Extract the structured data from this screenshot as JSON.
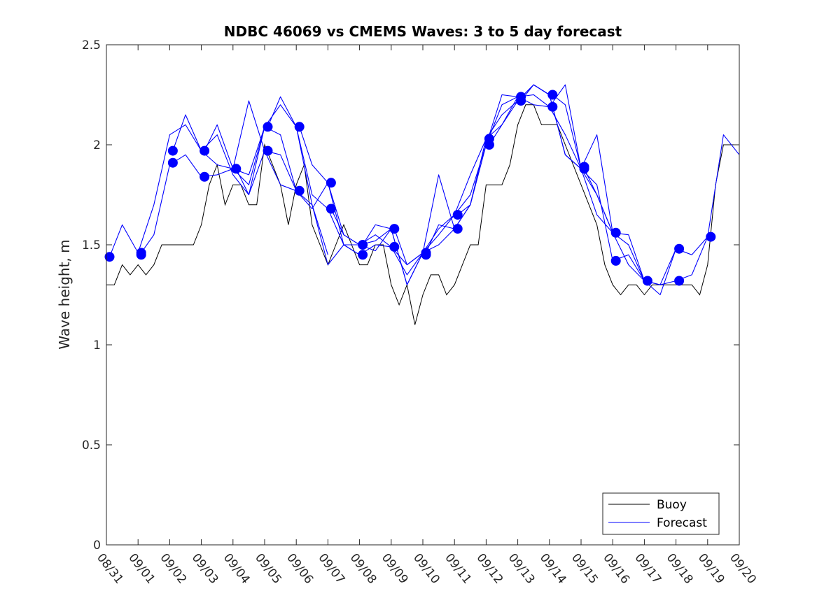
{
  "chart_data": {
    "type": "line",
    "title": "NDBC 46069 vs CMEMS Waves: 3 to 5 day forecast",
    "xlabel": "",
    "ylabel": "Wave height, m",
    "xlim": [
      0,
      20
    ],
    "ylim": [
      0,
      2.5
    ],
    "yticks": [
      0,
      0.5,
      1,
      1.5,
      2,
      2.5
    ],
    "ytick_labels": [
      "0",
      "0.5",
      "1",
      "1.5",
      "2",
      "2.5"
    ],
    "xtick_labels": [
      "08/31",
      "09/01",
      "09/02",
      "09/03",
      "09/04",
      "09/05",
      "09/06",
      "09/07",
      "09/08",
      "09/09",
      "09/10",
      "09/11",
      "09/12",
      "09/13",
      "09/14",
      "09/15",
      "09/16",
      "09/17",
      "09/18",
      "09/19",
      "09/20"
    ],
    "legend": {
      "position": "bottom-right",
      "entries": [
        {
          "label": "Buoy",
          "color": "#000000"
        },
        {
          "label": "Forecast",
          "color": "#0000ff"
        }
      ]
    },
    "colors": {
      "buoy": "#000000",
      "forecast": "#0000ff"
    },
    "buoy": {
      "name": "Buoy",
      "x": [
        0,
        0.25,
        0.5,
        0.75,
        1,
        1.25,
        1.5,
        1.75,
        2,
        2.25,
        2.5,
        2.75,
        3,
        3.25,
        3.5,
        3.75,
        4,
        4.25,
        4.5,
        4.75,
        5,
        5.25,
        5.5,
        5.75,
        6,
        6.25,
        6.5,
        6.75,
        7,
        7.25,
        7.5,
        7.75,
        8,
        8.25,
        8.5,
        8.75,
        9,
        9.25,
        9.5,
        9.75,
        10,
        10.25,
        10.5,
        10.75,
        11,
        11.25,
        11.5,
        11.75,
        12,
        12.25,
        12.5,
        12.75,
        13,
        13.25,
        13.5,
        13.75,
        14,
        14.25,
        14.5,
        14.75,
        15,
        15.25,
        15.5,
        15.75,
        16,
        16.25,
        16.5,
        16.75,
        17,
        17.25,
        17.5,
        17.75,
        18,
        18.25,
        18.5,
        18.75,
        19,
        19.25,
        19.5,
        19.75,
        20
      ],
      "y": [
        1.3,
        1.3,
        1.4,
        1.35,
        1.4,
        1.35,
        1.4,
        1.5,
        1.5,
        1.5,
        1.5,
        1.5,
        1.6,
        1.8,
        1.9,
        1.7,
        1.8,
        1.8,
        1.7,
        1.7,
        2.0,
        1.9,
        1.8,
        1.6,
        1.8,
        1.9,
        1.6,
        1.5,
        1.4,
        1.5,
        1.6,
        1.5,
        1.4,
        1.4,
        1.5,
        1.5,
        1.3,
        1.2,
        1.3,
        1.1,
        1.25,
        1.35,
        1.35,
        1.25,
        1.3,
        1.4,
        1.5,
        1.5,
        1.8,
        1.8,
        1.8,
        1.9,
        2.1,
        2.2,
        2.2,
        2.1,
        2.1,
        2.1,
        2.0,
        1.9,
        1.8,
        1.7,
        1.6,
        1.4,
        1.3,
        1.25,
        1.3,
        1.3,
        1.25,
        1.3,
        1.3,
        1.3,
        1.3,
        1.3,
        1.3,
        1.25,
        1.4,
        1.8,
        2.0,
        2.0,
        2.0
      ]
    },
    "forecast_series": [
      {
        "name": "Forecast",
        "x": [
          0.1,
          0.5,
          1.0,
          1.5,
          2.0,
          2.5,
          3.0,
          3.5,
          4.0,
          4.5,
          5.0
        ],
        "y": [
          1.44,
          1.6,
          1.46,
          1.7,
          2.05,
          2.1,
          1.97,
          1.9,
          1.88,
          1.85,
          2.09
        ]
      },
      {
        "name": "Forecast",
        "x": [
          1.1,
          1.5,
          2.0,
          2.5,
          3.0,
          3.5,
          4.0,
          4.5,
          5.0,
          5.5,
          6.0
        ],
        "y": [
          1.46,
          1.55,
          1.9,
          1.95,
          1.84,
          1.85,
          1.88,
          2.22,
          1.97,
          1.8,
          1.77
        ]
      },
      {
        "name": "Forecast",
        "x": [
          2.1,
          2.5,
          3.0,
          3.5,
          4.0,
          4.5,
          5.0,
          5.5,
          6.0,
          6.5,
          7.0
        ],
        "y": [
          1.97,
          2.15,
          1.97,
          2.05,
          1.85,
          1.75,
          2.09,
          2.2,
          2.09,
          1.7,
          1.45
        ]
      },
      {
        "name": "Forecast",
        "x": [
          3.1,
          3.5,
          4.0,
          4.5,
          5.0,
          5.5,
          6.0,
          6.5,
          7.0,
          7.5,
          8.0
        ],
        "y": [
          1.97,
          2.1,
          1.88,
          1.8,
          2.09,
          2.05,
          1.77,
          1.7,
          1.4,
          1.5,
          1.45
        ]
      },
      {
        "name": "Forecast",
        "x": [
          4.1,
          4.5,
          5.0,
          5.5,
          6.0,
          6.5,
          7.0,
          7.5,
          8.0,
          8.5,
          9.0
        ],
        "y": [
          1.88,
          1.75,
          1.97,
          1.95,
          1.77,
          1.68,
          1.81,
          1.5,
          1.5,
          1.52,
          1.58
        ]
      },
      {
        "name": "Forecast",
        "x": [
          5.1,
          5.5,
          6.0,
          6.5,
          7.0,
          7.5,
          8.0,
          8.5,
          9.0,
          9.5,
          10.0
        ],
        "y": [
          2.09,
          2.24,
          2.09,
          1.75,
          1.68,
          1.5,
          1.45,
          1.5,
          1.49,
          1.35,
          1.46
        ]
      },
      {
        "name": "Forecast",
        "x": [
          6.1,
          6.5,
          7.0,
          7.5,
          8.0,
          8.5,
          9.0,
          9.5,
          10.0,
          10.5,
          11.0
        ],
        "y": [
          2.09,
          1.9,
          1.81,
          1.55,
          1.5,
          1.47,
          1.58,
          1.3,
          1.46,
          1.85,
          1.58
        ]
      },
      {
        "name": "Forecast",
        "x": [
          7.1,
          7.5,
          8.0,
          8.5,
          9.0,
          9.5,
          10.0,
          10.5,
          11.0,
          11.5,
          12.0
        ],
        "y": [
          1.68,
          1.55,
          1.5,
          1.55,
          1.49,
          1.4,
          1.46,
          1.58,
          1.65,
          1.85,
          2.03
        ]
      },
      {
        "name": "Forecast",
        "x": [
          8.1,
          8.5,
          9.0,
          9.5,
          10.0,
          10.5,
          11.0,
          11.5,
          12.0,
          12.5,
          13.0
        ],
        "y": [
          1.5,
          1.6,
          1.58,
          1.3,
          1.46,
          1.55,
          1.65,
          1.75,
          2.0,
          2.2,
          2.24
        ]
      },
      {
        "name": "Forecast",
        "x": [
          9.1,
          9.5,
          10.0,
          10.5,
          11.0,
          11.5,
          12.0,
          12.5,
          13.0,
          13.5,
          14.0
        ],
        "y": [
          1.58,
          1.4,
          1.46,
          1.5,
          1.58,
          1.7,
          2.03,
          2.1,
          2.22,
          2.3,
          2.25
        ]
      },
      {
        "name": "Forecast",
        "x": [
          10.1,
          10.5,
          11.0,
          11.5,
          12.0,
          12.5,
          13.0,
          13.5,
          14.0,
          14.5,
          15.0
        ],
        "y": [
          1.46,
          1.6,
          1.58,
          1.7,
          2.0,
          2.25,
          2.24,
          2.2,
          2.19,
          2.05,
          1.88
        ]
      },
      {
        "name": "Forecast",
        "x": [
          11.1,
          11.5,
          12.0,
          12.5,
          13.0,
          13.5,
          14.0,
          14.5,
          15.0,
          15.5,
          16.0
        ],
        "y": [
          1.65,
          1.7,
          2.03,
          2.15,
          2.22,
          2.3,
          2.25,
          1.95,
          1.88,
          1.75,
          1.56
        ]
      },
      {
        "name": "Forecast",
        "x": [
          12.1,
          12.5,
          13.0,
          13.5,
          14.0,
          14.5,
          15.0,
          15.5,
          16.0,
          16.5,
          17.0
        ],
        "y": [
          2.0,
          2.1,
          2.24,
          2.25,
          2.19,
          2.3,
          1.88,
          2.05,
          1.56,
          1.5,
          1.32
        ]
      },
      {
        "name": "Forecast",
        "x": [
          13.1,
          13.5,
          14.0,
          14.5,
          15.0,
          15.5,
          16.0,
          16.5,
          17.0,
          17.5,
          18.0
        ],
        "y": [
          2.22,
          2.3,
          2.25,
          1.95,
          1.88,
          1.65,
          1.56,
          1.4,
          1.32,
          1.25,
          1.48
        ]
      },
      {
        "name": "Forecast",
        "x": [
          14.1,
          14.5,
          15.0,
          15.5,
          16.0,
          16.5,
          17.0,
          17.5,
          18.0,
          18.5,
          19.0
        ],
        "y": [
          2.25,
          2.2,
          1.88,
          1.8,
          1.42,
          1.45,
          1.32,
          1.3,
          1.32,
          1.35,
          1.54
        ]
      },
      {
        "name": "Forecast",
        "x": [
          15.1,
          15.5,
          16.0,
          16.5,
          17.0,
          17.5,
          18.0,
          18.5,
          19.0,
          19.5,
          20.0
        ],
        "y": [
          1.88,
          1.75,
          1.56,
          1.55,
          1.32,
          1.3,
          1.48,
          1.45,
          1.54,
          2.05,
          1.95
        ]
      }
    ],
    "forecast_markers": [
      {
        "x": 0.1,
        "y": 1.44
      },
      {
        "x": 1.1,
        "y": 1.45
      },
      {
        "x": 1.1,
        "y": 1.46
      },
      {
        "x": 2.1,
        "y": 1.97
      },
      {
        "x": 2.1,
        "y": 1.91
      },
      {
        "x": 3.1,
        "y": 1.97
      },
      {
        "x": 3.1,
        "y": 1.84
      },
      {
        "x": 4.1,
        "y": 1.88
      },
      {
        "x": 5.1,
        "y": 2.09
      },
      {
        "x": 5.1,
        "y": 1.97
      },
      {
        "x": 6.1,
        "y": 2.09
      },
      {
        "x": 6.1,
        "y": 1.77
      },
      {
        "x": 7.1,
        "y": 1.81
      },
      {
        "x": 7.1,
        "y": 1.68
      },
      {
        "x": 8.1,
        "y": 1.5
      },
      {
        "x": 8.1,
        "y": 1.45
      },
      {
        "x": 9.1,
        "y": 1.58
      },
      {
        "x": 9.1,
        "y": 1.49
      },
      {
        "x": 10.1,
        "y": 1.46
      },
      {
        "x": 10.1,
        "y": 1.45
      },
      {
        "x": 11.1,
        "y": 1.65
      },
      {
        "x": 11.1,
        "y": 1.58
      },
      {
        "x": 12.1,
        "y": 2.03
      },
      {
        "x": 12.1,
        "y": 2.0
      },
      {
        "x": 13.1,
        "y": 2.24
      },
      {
        "x": 13.1,
        "y": 2.22
      },
      {
        "x": 14.1,
        "y": 2.25
      },
      {
        "x": 14.1,
        "y": 2.19
      },
      {
        "x": 15.1,
        "y": 1.89
      },
      {
        "x": 15.1,
        "y": 1.88
      },
      {
        "x": 16.1,
        "y": 1.56
      },
      {
        "x": 16.1,
        "y": 1.42
      },
      {
        "x": 17.1,
        "y": 1.32
      },
      {
        "x": 18.1,
        "y": 1.48
      },
      {
        "x": 18.1,
        "y": 1.32
      },
      {
        "x": 19.1,
        "y": 1.54
      }
    ]
  }
}
